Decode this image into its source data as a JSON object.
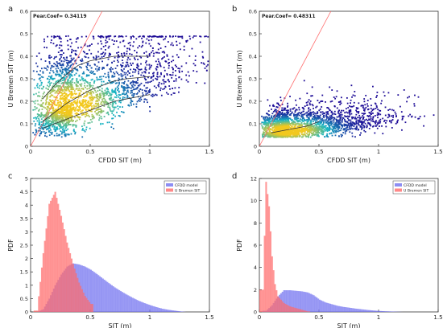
{
  "chart_data": [
    {
      "panel": "a",
      "type": "scatter",
      "xlabel": "CFDD SIT (m)",
      "ylabel": "U Bremen SIT (m)",
      "xlim": [
        0,
        1.5
      ],
      "ylim": [
        0,
        0.6
      ],
      "xticks": [
        "0",
        "0.5",
        "1",
        "1.5"
      ],
      "yticks": [
        "0",
        "0.1",
        "0.2",
        "0.3",
        "0.4",
        "0.5",
        "0.6"
      ],
      "annotation": "Pear.Coef= 0.34119",
      "density_center": [
        0.35,
        0.19
      ],
      "density_spread": [
        0.3,
        0.09
      ],
      "density_tilt": 0.55,
      "point_cap": 0.49,
      "identity_line": [
        [
          0.0,
          0.0
        ],
        [
          0.6,
          0.6
        ]
      ],
      "percentile_lines": [
        {
          "name": "median",
          "x": [
            0.1,
            0.2,
            0.3,
            0.4,
            0.5,
            0.6,
            0.7,
            0.8,
            0.9,
            1.0
          ],
          "y": [
            0.11,
            0.15,
            0.19,
            0.22,
            0.25,
            0.27,
            0.29,
            0.3,
            0.305,
            0.31
          ]
        },
        {
          "name": "upper",
          "x": [
            0.1,
            0.2,
            0.3,
            0.4,
            0.5,
            0.6,
            0.7,
            0.8,
            0.9,
            1.0
          ],
          "y": [
            0.21,
            0.27,
            0.32,
            0.36,
            0.38,
            0.39,
            0.4,
            0.4,
            0.4,
            0.4
          ]
        },
        {
          "name": "lower",
          "x": [
            0.1,
            0.2,
            0.3,
            0.4,
            0.5,
            0.6,
            0.7,
            0.8,
            0.9,
            1.0
          ],
          "y": [
            0.08,
            0.1,
            0.12,
            0.14,
            0.16,
            0.18,
            0.2,
            0.21,
            0.22,
            0.23
          ]
        }
      ]
    },
    {
      "panel": "b",
      "type": "scatter",
      "xlabel": "CFDD SIT (m)",
      "ylabel": "U Bremen SIT (m)",
      "xlim": [
        0,
        1.5
      ],
      "ylim": [
        0,
        0.6
      ],
      "xticks": [
        "0",
        "0.5",
        "1",
        "1.5"
      ],
      "yticks": [
        "0",
        "0.1",
        "0.2",
        "0.3",
        "0.4",
        "0.5",
        "0.6"
      ],
      "annotation": "Pear.Coef= 0.48311",
      "density_center": [
        0.25,
        0.07
      ],
      "density_spread": [
        0.25,
        0.035
      ],
      "density_tilt": 0.2,
      "point_cap": 0.49,
      "identity_line": [
        [
          0.0,
          0.0
        ],
        [
          0.6,
          0.6
        ]
      ],
      "percentile_lines": [
        {
          "name": "median",
          "x": [
            0.1,
            0.2,
            0.3,
            0.4,
            0.5
          ],
          "y": [
            0.06,
            0.07,
            0.08,
            0.09,
            0.11
          ]
        }
      ]
    },
    {
      "panel": "c",
      "type": "bar",
      "xlabel": "SIT (m)",
      "ylabel": "PDF",
      "xlim": [
        0,
        1.5
      ],
      "ylim": [
        0,
        5
      ],
      "xticks": [
        "0",
        "0.5",
        "1",
        "1.5"
      ],
      "yticks": [
        "0",
        "0.5",
        "1",
        "1.5",
        "2",
        "2.5",
        "3",
        "3.5",
        "4",
        "4.5",
        "5"
      ],
      "legend_position": "top-right",
      "series": [
        {
          "name": "CFDD model",
          "color": "#7070f0",
          "x": [
            0.05,
            0.1,
            0.15,
            0.2,
            0.25,
            0.3,
            0.35,
            0.4,
            0.45,
            0.5,
            0.55,
            0.6,
            0.65,
            0.7,
            0.75,
            0.8,
            0.85,
            0.9,
            0.95,
            1.0,
            1.05,
            1.1,
            1.15,
            1.2,
            1.25,
            1.3
          ],
          "values": [
            0.0,
            0.1,
            0.5,
            1.0,
            1.4,
            1.7,
            1.82,
            1.78,
            1.7,
            1.58,
            1.42,
            1.25,
            1.08,
            0.92,
            0.78,
            0.65,
            0.53,
            0.42,
            0.33,
            0.25,
            0.18,
            0.12,
            0.08,
            0.05,
            0.02,
            0.0
          ]
        },
        {
          "name": "U Bremen SIT",
          "color": "#ff6b6b",
          "x": [
            0.05,
            0.1,
            0.15,
            0.2,
            0.25,
            0.3,
            0.35,
            0.4,
            0.45,
            0.5
          ],
          "values": [
            0.05,
            2.2,
            4.05,
            4.5,
            3.6,
            2.6,
            1.8,
            1.1,
            0.6,
            0.3
          ]
        }
      ]
    },
    {
      "panel": "d",
      "type": "bar",
      "xlabel": "SIT (m)",
      "ylabel": "PDF",
      "xlim": [
        0,
        1.5
      ],
      "ylim": [
        0,
        12
      ],
      "xticks": [
        "0",
        "0.5",
        "1",
        "1.5"
      ],
      "yticks": [
        "0",
        "2",
        "4",
        "6",
        "8",
        "10",
        "12"
      ],
      "legend_position": "top-right",
      "series": [
        {
          "name": "CFDD model",
          "color": "#7070f0",
          "x": [
            0.05,
            0.1,
            0.15,
            0.2,
            0.25,
            0.3,
            0.35,
            0.4,
            0.45,
            0.5,
            0.55,
            0.6,
            0.65,
            0.7,
            0.75,
            0.8,
            0.85,
            0.9,
            0.95,
            1.0,
            1.05,
            1.1,
            1.15,
            1.2
          ],
          "values": [
            0.1,
            0.6,
            1.4,
            1.95,
            1.95,
            1.9,
            1.85,
            1.75,
            1.5,
            1.1,
            0.85,
            0.7,
            0.55,
            0.45,
            0.38,
            0.3,
            0.24,
            0.18,
            0.13,
            0.09,
            0.06,
            0.04,
            0.02,
            0.0
          ]
        },
        {
          "name": "U Bremen SIT",
          "color": "#ff6b6b",
          "x": [
            0.025,
            0.05,
            0.075,
            0.1,
            0.125,
            0.15,
            0.2,
            0.25,
            0.3,
            0.35,
            0.4
          ],
          "values": [
            2.0,
            11.7,
            9.5,
            5.0,
            2.5,
            1.4,
            0.8,
            0.5,
            0.35,
            0.2,
            0.05
          ]
        }
      ]
    }
  ],
  "colors": {
    "density_low": "#1c0a96",
    "density_mid": "#17b7c4",
    "density_high": "#f2c81e",
    "identity_line": "#ff6b6b",
    "percentile_line": "#333333",
    "cfdd": "#7070f0",
    "bremen": "#ff6b6b"
  }
}
